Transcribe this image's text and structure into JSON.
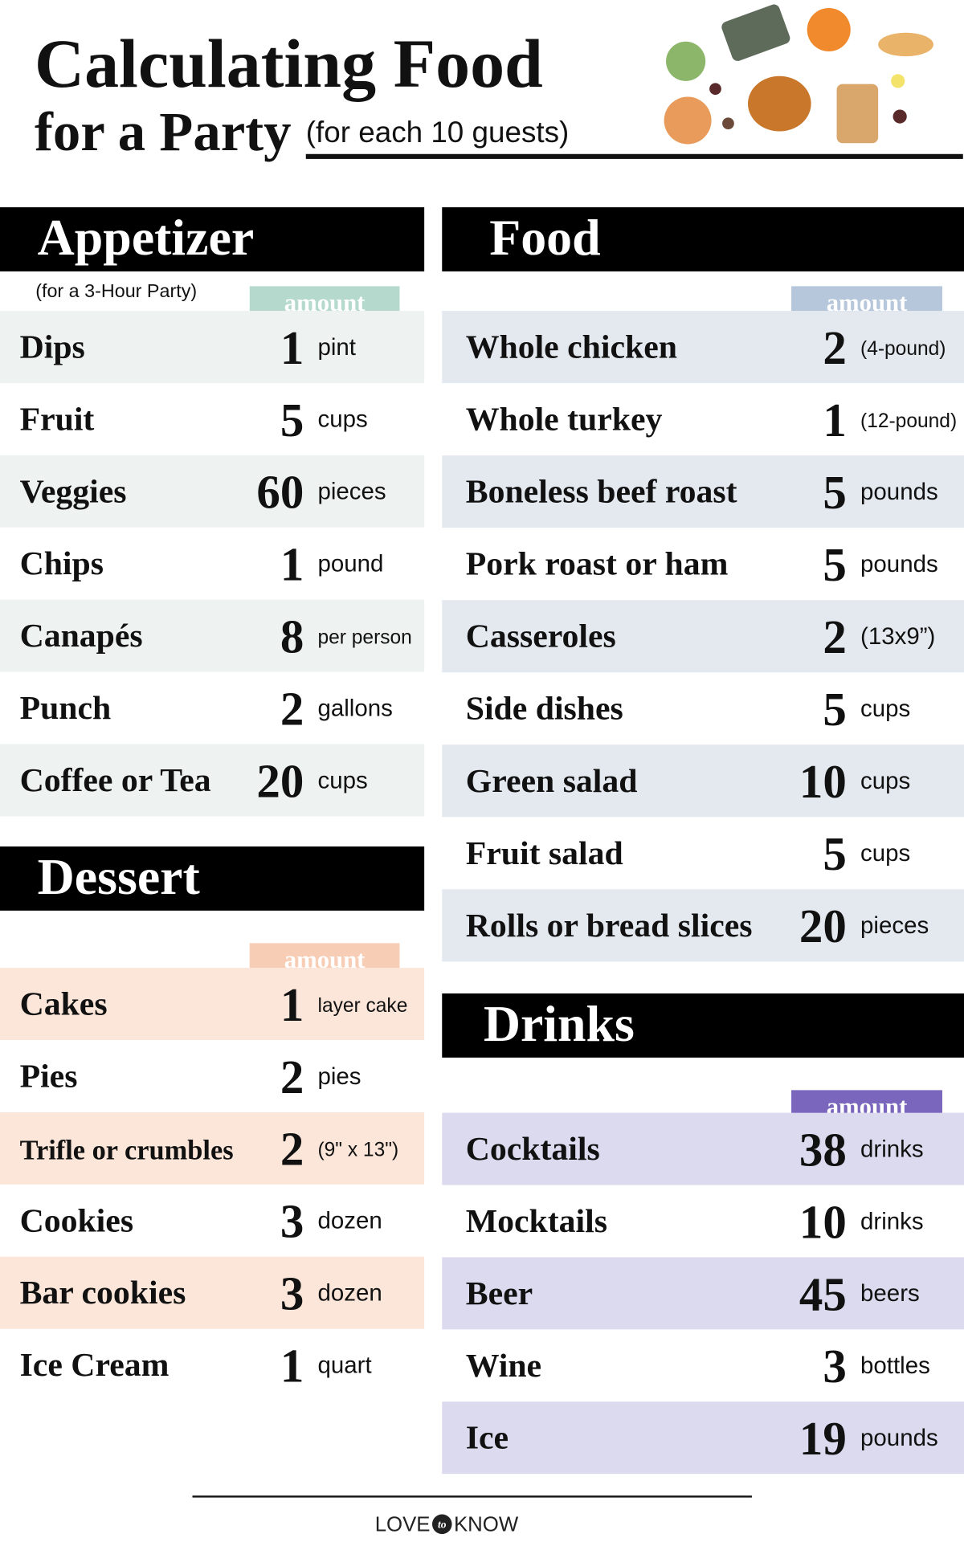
{
  "header": {
    "title_line1": "Calculating Food",
    "title_line2": "for a Party",
    "subtitle": "(for each 10 guests)"
  },
  "sections": [
    {
      "heading": "Appetizer",
      "note": "(for a 3-Hour Party)",
      "amount_label": "amount",
      "rows": [
        {
          "item": "Dips",
          "quantity": 1,
          "unit": "pint"
        },
        {
          "item": "Fruit",
          "quantity": 5,
          "unit": "cups"
        },
        {
          "item": "Veggies",
          "quantity": 60,
          "unit": "pieces"
        },
        {
          "item": "Chips",
          "quantity": 1,
          "unit": "pound"
        },
        {
          "item": "Canapés",
          "quantity": 8,
          "unit": "per person"
        },
        {
          "item": "Punch",
          "quantity": 2,
          "unit": "gallons"
        },
        {
          "item": "Coffee or Tea",
          "quantity": 20,
          "unit": "cups"
        }
      ]
    },
    {
      "heading": "Dessert",
      "amount_label": "amount",
      "rows": [
        {
          "item": "Cakes",
          "quantity": 1,
          "unit": "layer cake"
        },
        {
          "item": "Pies",
          "quantity": 2,
          "unit": "pies"
        },
        {
          "item": "Trifle or crumbles",
          "quantity": 2,
          "unit": "(9\" x 13\")"
        },
        {
          "item": "Cookies",
          "quantity": 3,
          "unit": "dozen"
        },
        {
          "item": "Bar cookies",
          "quantity": 3,
          "unit": "dozen"
        },
        {
          "item": "Ice Cream",
          "quantity": 1,
          "unit": "quart"
        }
      ]
    },
    {
      "heading": "Food",
      "amount_label": "amount",
      "rows": [
        {
          "item": "Whole chicken",
          "quantity": 2,
          "unit": "(4-pound)"
        },
        {
          "item": "Whole turkey",
          "quantity": 1,
          "unit": "(12-pound)"
        },
        {
          "item": "Boneless beef roast",
          "quantity": 5,
          "unit": "pounds"
        },
        {
          "item": "Pork roast or ham",
          "quantity": 5,
          "unit": "pounds"
        },
        {
          "item": "Casseroles",
          "quantity": 2,
          "unit": "(13x9”)"
        },
        {
          "item": "Side dishes",
          "quantity": 5,
          "unit": "cups"
        },
        {
          "item": "Green salad",
          "quantity": 10,
          "unit": "cups"
        },
        {
          "item": "Fruit salad",
          "quantity": 5,
          "unit": "cups"
        },
        {
          "item": "Rolls or bread slices",
          "quantity": 20,
          "unit": "pieces"
        }
      ]
    },
    {
      "heading": "Drinks",
      "amount_label": "amount",
      "rows": [
        {
          "item": "Cocktails",
          "quantity": 38,
          "unit": "drinks"
        },
        {
          "item": "Mocktails",
          "quantity": 10,
          "unit": "drinks"
        },
        {
          "item": "Beer",
          "quantity": 45,
          "unit": "beers"
        },
        {
          "item": "Wine",
          "quantity": 3,
          "unit": "bottles"
        },
        {
          "item": "Ice",
          "quantity": 19,
          "unit": "pounds"
        }
      ]
    }
  ],
  "footer": {
    "brand_left": "LOVE",
    "brand_mid": "to",
    "brand_right": "KNOW"
  }
}
